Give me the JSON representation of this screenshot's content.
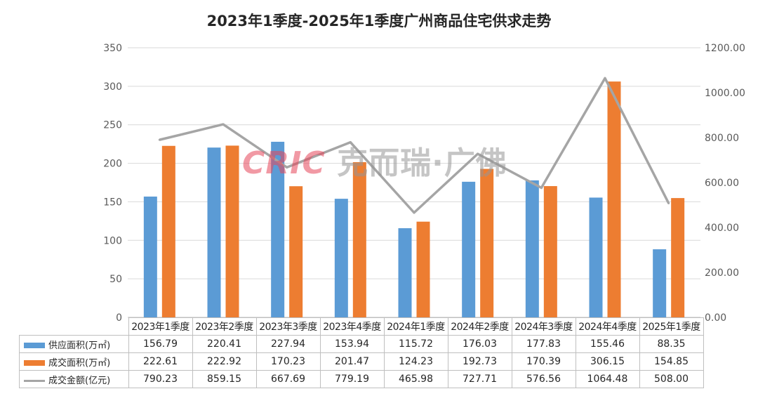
{
  "chart_data": {
    "type": "bar",
    "title": "2023年1季度-2025年1季度广州商品住宅供求走势",
    "categories": [
      "2023年1季度",
      "2023年2季度",
      "2023年3季度",
      "2023年4季度",
      "2024年1季度",
      "2024年2季度",
      "2024年3季度",
      "2024年4季度",
      "2025年1季度"
    ],
    "series": [
      {
        "name": "供应面积(万㎡)",
        "kind": "bar",
        "axis": "left",
        "color": "#5b9bd5",
        "values": [
          156.79,
          220.41,
          227.94,
          153.94,
          115.72,
          176.03,
          177.83,
          155.46,
          88.35
        ],
        "labels": [
          "156.79",
          "220.41",
          "227.94",
          "153.94",
          "115.72",
          "176.03",
          "177.83",
          "155.46",
          "88.35"
        ]
      },
      {
        "name": "成交面积(万㎡)",
        "kind": "bar",
        "axis": "left",
        "color": "#ed7d31",
        "values": [
          222.61,
          222.92,
          170.23,
          201.47,
          124.23,
          192.73,
          170.39,
          306.15,
          154.85
        ],
        "labels": [
          "222.61",
          "222.92",
          "170.23",
          "201.47",
          "124.23",
          "192.73",
          "170.39",
          "306.15",
          "154.85"
        ]
      },
      {
        "name": "成交金额(亿元)",
        "kind": "line",
        "axis": "right",
        "color": "#a5a5a5",
        "values": [
          790.23,
          859.15,
          667.69,
          779.19,
          465.98,
          727.71,
          576.56,
          1064.48,
          508.0
        ],
        "labels": [
          "790.23",
          "859.15",
          "667.69",
          "779.19",
          "465.98",
          "727.71",
          "576.56",
          "1064.48",
          "508.00"
        ]
      }
    ],
    "y_left": {
      "min": 0,
      "max": 350,
      "ticks": [
        "0",
        "50",
        "100",
        "150",
        "200",
        "250",
        "300",
        "350"
      ]
    },
    "y_right": {
      "min": 0,
      "max": 1200,
      "ticks": [
        "0.00",
        "200.00",
        "400.00",
        "600.00",
        "800.00",
        "1000.00",
        "1200.00"
      ]
    },
    "grid": true,
    "legend": "data-table-below"
  },
  "watermark": {
    "latin": "CRIC",
    "cn": "克而瑞·广佛"
  }
}
